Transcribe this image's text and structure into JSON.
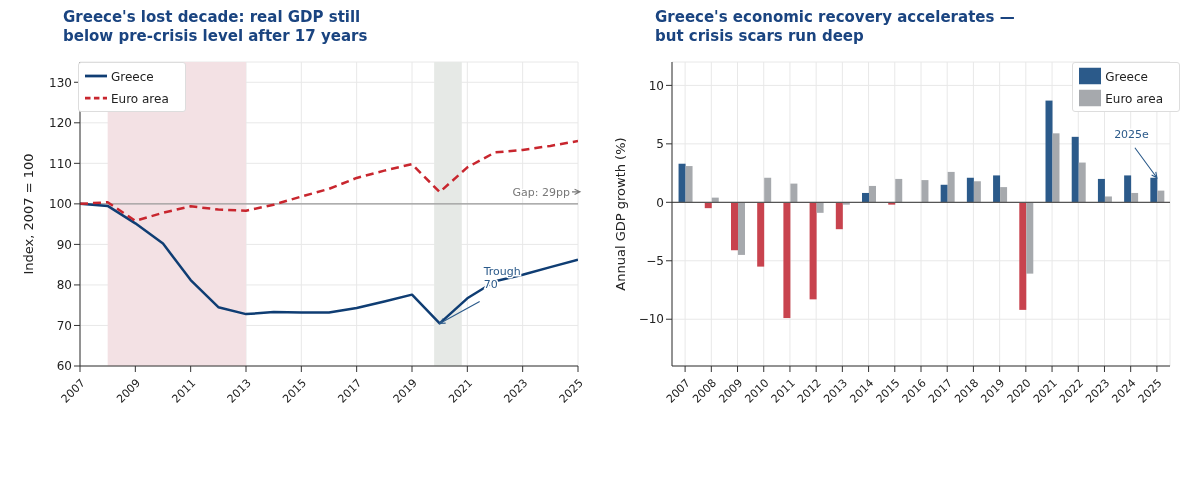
{
  "chart_data": [
    {
      "type": "line",
      "title": "Greece's lost decade: real GDP still\nbelow pre-crisis level after 17 years",
      "ylabel": "Index, 2007 = 100",
      "x": [
        2007,
        2008,
        2009,
        2010,
        2011,
        2012,
        2013,
        2014,
        2015,
        2016,
        2017,
        2018,
        2019,
        2020,
        2021,
        2022,
        2023,
        2024,
        2025
      ],
      "series": [
        {
          "name": "Greece",
          "color": "#0f3d73",
          "line_style": "solid",
          "values": [
            100,
            99.5,
            95.2,
            90.2,
            81.2,
            74.5,
            72.8,
            73.3,
            73.2,
            73.2,
            74.3,
            75.9,
            77.6,
            70.5,
            76.7,
            80.9,
            82.5,
            84.4,
            86.2
          ]
        },
        {
          "name": "Euro area",
          "color": "#c8262e",
          "line_style": "dashed",
          "values": [
            100,
            100.4,
            95.8,
            97.8,
            99.4,
            98.6,
            98.3,
            99.8,
            101.8,
            103.7,
            106.4,
            108.2,
            109.8,
            102.9,
            109.0,
            112.7,
            113.3,
            114.3,
            115.5
          ]
        }
      ],
      "xlim": [
        2007,
        2025
      ],
      "xticks": [
        2007,
        2009,
        2011,
        2013,
        2015,
        2017,
        2019,
        2021,
        2023,
        2025
      ],
      "ylim": [
        60,
        135
      ],
      "yticks": [
        60,
        70,
        80,
        90,
        100,
        110,
        120,
        130
      ],
      "bands": [
        {
          "axis": "x",
          "from": 2008,
          "to": 2013,
          "color": "#f3e1e4"
        },
        {
          "axis": "x",
          "from": 2019.8,
          "to": 2020.8,
          "color": "#e6e9e6"
        }
      ],
      "ref_lines": [
        {
          "axis": "y",
          "value": 100,
          "color": "#999999"
        }
      ],
      "annotations": [
        {
          "text": "Gap: 29pp",
          "x": 2025,
          "y": 100
        },
        {
          "text": "Trough\n70",
          "x": 2020,
          "y": 70.5
        }
      ],
      "grid": true,
      "legend": "top left",
      "marker": "none"
    },
    {
      "type": "bar",
      "title": "Greece's economic recovery accelerates —\nbut crisis scars run deep",
      "ylabel": "Annual GDP growth (%)",
      "categories": [
        "2007",
        "2008",
        "2009",
        "2010",
        "2011",
        "2012",
        "2013",
        "2014",
        "2015",
        "2016",
        "2017",
        "2018",
        "2019",
        "2020",
        "2021",
        "2022",
        "2023",
        "2024",
        "2025"
      ],
      "series": [
        {
          "name": "Greece",
          "color": "#2b5a8a",
          "colors": [
            "#2b5a8a",
            "#c8434e",
            "#c8434e",
            "#c8434e",
            "#c8434e",
            "#c8434e",
            "#c8434e",
            "#2b5a8a",
            "#c8434e",
            "#2b5a8a",
            "#2b5a8a",
            "#2b5a8a",
            "#2b5a8a",
            "#c8434e",
            "#2b5a8a",
            "#2b5a8a",
            "#2b5a8a",
            "#2b5a8a",
            "#2b5a8a"
          ],
          "values": [
            3.3,
            -0.5,
            -4.1,
            -5.5,
            -9.9,
            -8.3,
            -2.3,
            0.8,
            -0.2,
            0,
            1.5,
            2.1,
            2.3,
            -9.2,
            8.7,
            5.6,
            2.0,
            2.3,
            2.1
          ]
        },
        {
          "name": "Euro area",
          "color": "#a6a9ad",
          "values": [
            3.1,
            0.4,
            -4.5,
            2.1,
            1.6,
            -0.9,
            -0.2,
            1.4,
            2.0,
            1.9,
            2.6,
            1.8,
            1.3,
            -6.1,
            5.9,
            3.4,
            0.5,
            0.8,
            1.0
          ]
        }
      ],
      "ylim": [
        -14,
        12
      ],
      "yticks": [
        -10,
        -5,
        0,
        5,
        10
      ],
      "ref_lines": [
        {
          "axis": "y",
          "value": 0,
          "color": "#555555"
        }
      ],
      "annotations": [
        {
          "text": "2025e",
          "x": "2025",
          "y": 2.1
        }
      ],
      "grid": true,
      "legend": "top right"
    }
  ]
}
